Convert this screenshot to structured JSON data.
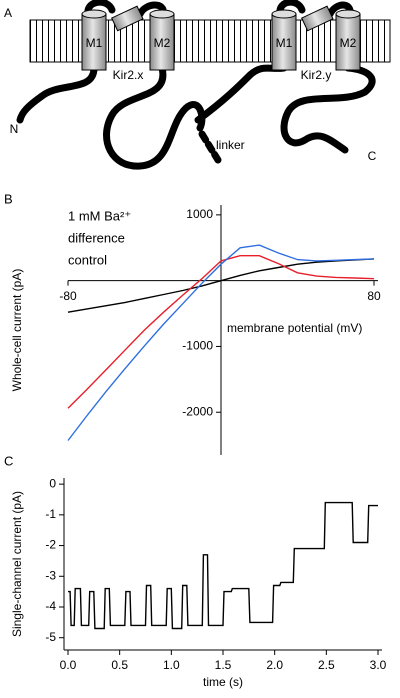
{
  "diagram": {
    "panel_label": "A",
    "labels": {
      "m1_x": "M1",
      "m2_x": "M2",
      "kir_x": "Kir2.x",
      "m1_y": "M1",
      "m2_y": "M2",
      "kir_y": "Kir2.y",
      "n": "N",
      "linker": "linker",
      "c": "C"
    }
  },
  "chart_data": [
    {
      "type": "line",
      "panel_label": "B",
      "axes_through_origin": true,
      "xlabel": "membrane potential (mV)",
      "ylabel": "Whole-cell current (pA)",
      "x": [
        -80,
        -70,
        -60,
        -50,
        -40,
        -30,
        -20,
        -10,
        0,
        10,
        20,
        30,
        40,
        50,
        60,
        70,
        80
      ],
      "series": [
        {
          "name": "1 mM Ba²⁺",
          "color": "#000000",
          "values": [
            -480,
            -430,
            -380,
            -330,
            -270,
            -210,
            -150,
            -80,
            0,
            80,
            150,
            200,
            250,
            280,
            300,
            315,
            330
          ]
        },
        {
          "name": "difference",
          "color": "#e8202a",
          "values": [
            -1940,
            -1650,
            -1350,
            -1050,
            -750,
            -480,
            -220,
            30,
            300,
            380,
            380,
            260,
            120,
            70,
            50,
            40,
            30
          ]
        },
        {
          "name": "control",
          "color": "#2f6fe0",
          "values": [
            -2430,
            -2050,
            -1680,
            -1330,
            -990,
            -660,
            -350,
            -40,
            250,
            500,
            540,
            420,
            320,
            300,
            310,
            320,
            330
          ]
        }
      ],
      "xlim": [
        -80,
        80
      ],
      "ylim": [
        -2650,
        1150
      ],
      "xticks": [
        -80,
        80
      ],
      "yticks": [
        1000,
        -1000,
        -2000
      ]
    },
    {
      "type": "line",
      "panel_label": "C",
      "axes_through_origin": false,
      "xlabel": "time (s)",
      "ylabel": "Single-channel current (pA)",
      "x": [
        0,
        0.02,
        0.03,
        0.06,
        0.07,
        0.12,
        0.13,
        0.2,
        0.21,
        0.25,
        0.26,
        0.35,
        0.36,
        0.4,
        0.41,
        0.55,
        0.56,
        0.6,
        0.61,
        0.75,
        0.76,
        0.8,
        0.81,
        0.95,
        0.96,
        1.0,
        1.01,
        1.1,
        1.11,
        1.15,
        1.16,
        1.3,
        1.31,
        1.35,
        1.36,
        1.5,
        1.51,
        1.58,
        1.59,
        1.75,
        1.76,
        1.98,
        1.99,
        2.05,
        2.06,
        2.18,
        2.19,
        2.48,
        2.49,
        2.75,
        2.76,
        2.9,
        2.91,
        3.0
      ],
      "series": [
        {
          "color": "#000000",
          "values": [
            -3.5,
            -3.5,
            -4.6,
            -4.6,
            -3.4,
            -3.4,
            -4.6,
            -4.6,
            -3.5,
            -3.5,
            -4.7,
            -4.7,
            -3.4,
            -3.4,
            -4.6,
            -4.6,
            -3.5,
            -3.5,
            -4.6,
            -4.6,
            -3.3,
            -3.3,
            -4.6,
            -4.6,
            -3.4,
            -3.4,
            -4.7,
            -4.7,
            -3.3,
            -3.3,
            -4.6,
            -4.6,
            -2.3,
            -2.3,
            -4.6,
            -4.6,
            -3.5,
            -3.5,
            -3.4,
            -3.4,
            -4.5,
            -4.5,
            -3.3,
            -3.3,
            -3.2,
            -3.2,
            -2.1,
            -2.1,
            -0.6,
            -0.6,
            -1.9,
            -1.9,
            -0.7,
            -0.7
          ]
        }
      ],
      "xlim": [
        0,
        3
      ],
      "ylim": [
        -5.4,
        0.2
      ],
      "xticks": [
        {
          "value": 0,
          "label": "0.0"
        },
        0.5,
        {
          "value": 1,
          "label": "1.0"
        },
        1.5,
        {
          "value": 2,
          "label": "2.0"
        },
        2.5,
        {
          "value": 3,
          "label": "3.0"
        }
      ],
      "yticks": [
        0,
        -1,
        -2,
        -3,
        -4,
        -5
      ]
    }
  ]
}
